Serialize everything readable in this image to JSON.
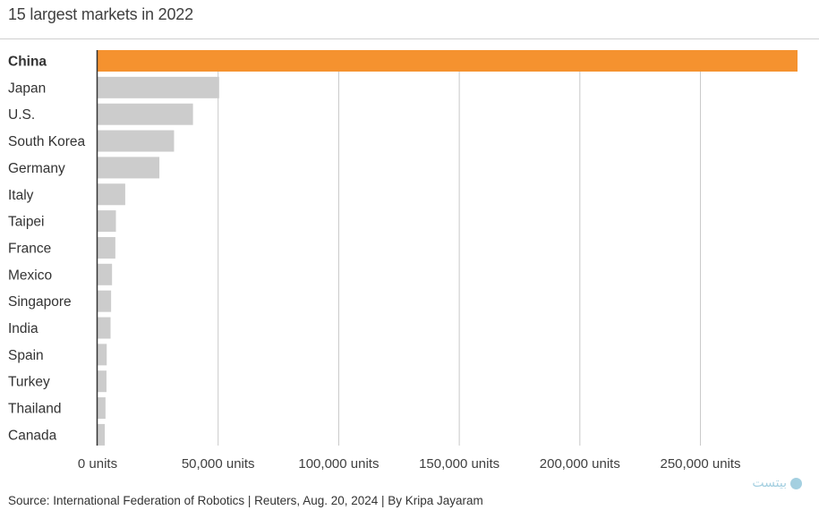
{
  "chart_data": {
    "type": "bar",
    "orientation": "horizontal",
    "title": "15 largest markets in 2022",
    "categories": [
      "China",
      "Japan",
      "U.S.",
      "South Korea",
      "Germany",
      "Italy",
      "Taipei",
      "France",
      "Mexico",
      "Singapore",
      "India",
      "Spain",
      "Turkey",
      "Thailand",
      "Canada"
    ],
    "values": [
      290258,
      50413,
      39576,
      31716,
      25636,
      11475,
      7612,
      7380,
      6000,
      5612,
      5395,
      3800,
      3700,
      3300,
      3000
    ],
    "highlight": "China",
    "xlim": [
      0,
      290258
    ],
    "ticks": [
      0,
      50000,
      100000,
      150000,
      200000,
      250000
    ],
    "tick_labels": [
      "0 units",
      "50,000 units",
      "100,000 units",
      "150,000 units",
      "200,000 units",
      "250,000 units"
    ],
    "grid": true,
    "colors": {
      "highlight": "#f5922f",
      "default": "#cccccc",
      "grid": "#c8c8c8",
      "axis": "#333333"
    }
  },
  "source": "Source: International Federation of Robotics | Reuters, Aug. 20, 2024 | By Kripa Jayaram",
  "watermark": "بیتست"
}
